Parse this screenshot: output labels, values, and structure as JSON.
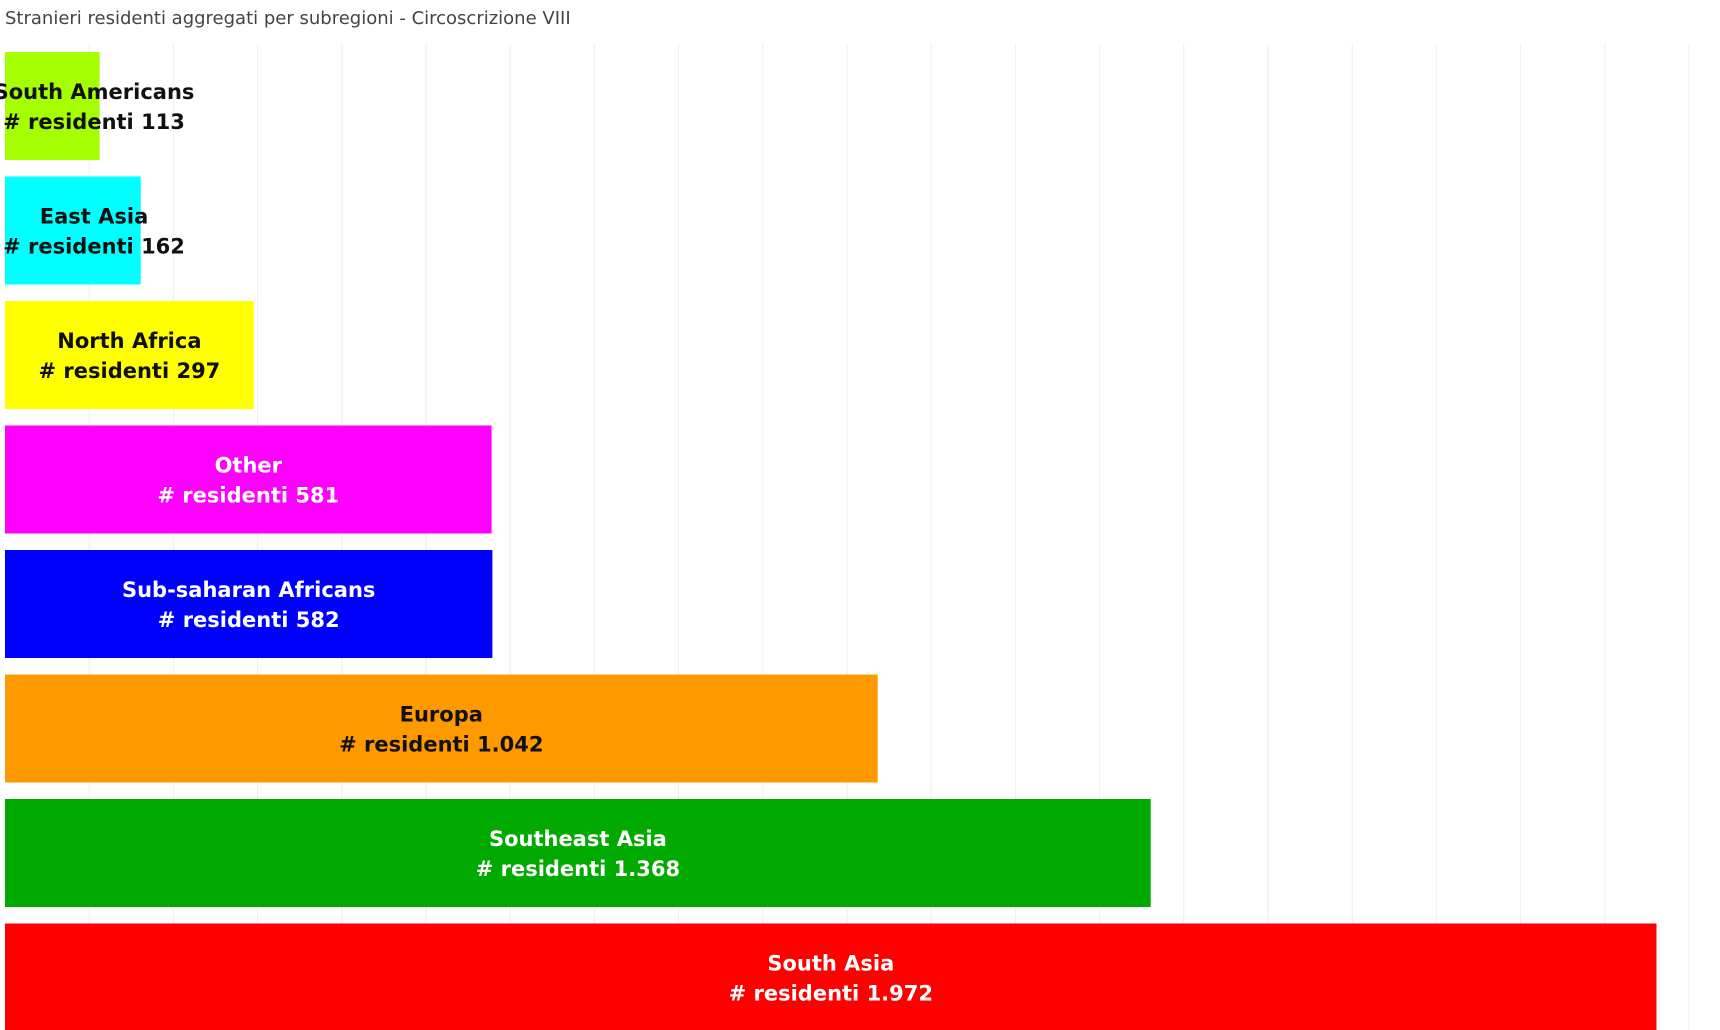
{
  "chart_data": {
    "type": "bar",
    "orientation": "horizontal",
    "title": "Stranieri residenti aggregati per subregioni - Circoscrizione VIII",
    "xlabel": "",
    "ylabel": "",
    "xlim": [
      0,
      2000
    ],
    "grid": true,
    "legend": "none",
    "value_prefix": "# residenti",
    "categories": [
      "South Americans",
      "East Asia",
      "North Africa",
      "Other",
      "Sub-saharan Africans",
      "Europa",
      "Southeast Asia",
      "South Asia"
    ],
    "values": [
      113,
      162,
      297,
      581,
      582,
      1042,
      1368,
      1972
    ],
    "value_labels": [
      "113",
      "162",
      "297",
      "581",
      "582",
      "1.042",
      "1.368",
      "1.972"
    ],
    "colors": [
      "#a6ff00",
      "#00ffff",
      "#ffff00",
      "#ff00ff",
      "#0000ff",
      "#ff9900",
      "#00aa00",
      "#ff0000"
    ],
    "label_colors": [
      "#111111",
      "#111111",
      "#111111",
      "#ffffff",
      "#ffffff",
      "#111111",
      "#ffffff",
      "#ffffff"
    ]
  }
}
